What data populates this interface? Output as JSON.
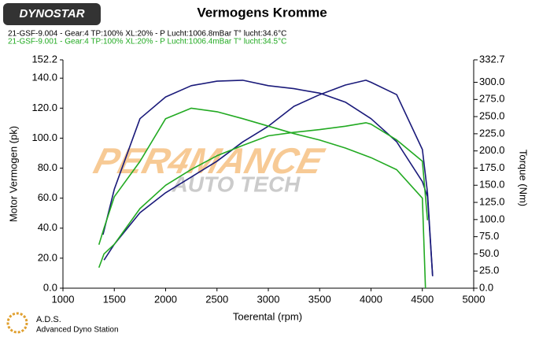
{
  "chart_data": {
    "type": "line",
    "logo": "DYNOSTAR",
    "title": "Vermogens Kromme",
    "legend": [
      {
        "text": "21-GSF-9.004 - Gear:4 TP:100% XL:20%   - P Lucht:1006.8mBar T° lucht:34.6°C",
        "color": "#000000"
      },
      {
        "text": "21-GSF-9.001 - Gear:4 TP:100% XL:20%   - P Lucht:1006.4mBar T° lucht:34.5°C",
        "color": "#22aa22"
      }
    ],
    "watermark": [
      "PER4MANCE",
      "AUTO TECH"
    ],
    "x_label": "Toerental (rpm)",
    "y_label": "Motor Vermogen (pk)",
    "y2_label": "Torque (Nm)",
    "footer": [
      "A.D.S.",
      "Advanced Dyno Station"
    ],
    "xlim": [
      1000,
      5000
    ],
    "xticks": [
      1000,
      1500,
      2000,
      2500,
      3000,
      3500,
      4000,
      4500,
      5000
    ],
    "ylim": [
      0,
      152.2
    ],
    "yticks": [
      {
        "value": 0,
        "label": "0.0"
      },
      {
        "value": 20,
        "label": "20.0"
      },
      {
        "value": 40,
        "label": "40.0"
      },
      {
        "value": 60,
        "label": "60.0"
      },
      {
        "value": 80,
        "label": "80.0"
      },
      {
        "value": 100,
        "label": "100.0"
      },
      {
        "value": 120,
        "label": "120.0"
      },
      {
        "value": 140,
        "label": "140.0"
      },
      152.2
    ],
    "y2lim": [
      0,
      332.7
    ],
    "y2ticks": [
      {
        "value": 0,
        "label": "0.0"
      },
      {
        "value": 25,
        "label": "25.0"
      },
      {
        "value": 50,
        "label": "50.0"
      },
      {
        "value": 75,
        "label": "75.0"
      },
      {
        "value": 100,
        "label": "100.0"
      },
      {
        "value": 125,
        "label": "125.0"
      },
      {
        "value": 150,
        "label": "150.0"
      },
      {
        "value": 175,
        "label": "175.0"
      },
      {
        "value": 200,
        "label": "200.0"
      },
      {
        "value": 225,
        "label": "225.0"
      },
      {
        "value": 250,
        "label": "250.0"
      },
      {
        "value": 275,
        "label": "275.0"
      },
      {
        "value": 300,
        "label": "300.0"
      },
      332.7
    ],
    "series": [
      {
        "color": "#1a1a7a",
        "x": [
          1390,
          1500,
          1750,
          2000,
          2250,
          2500,
          2750,
          3000,
          3250,
          3500,
          3750,
          4000,
          4250,
          4500,
          4550,
          4600
        ],
        "values": [
          35.7,
          66,
          113,
          127.5,
          135,
          138,
          138.6,
          135,
          133,
          130,
          124,
          113,
          97.6,
          71,
          61,
          8
        ]
      },
      {
        "color": "#1a1a7a",
        "axis": "y2",
        "x": [
          1400,
          1500,
          1750,
          2000,
          2250,
          2500,
          2750,
          3000,
          3250,
          3500,
          3750,
          3950,
          4000,
          4250,
          4500,
          4550,
          4600
        ],
        "values": [
          41,
          64,
          110,
          139,
          162,
          185,
          213,
          236,
          265,
          282,
          296,
          303,
          300,
          282,
          202,
          139,
          18
        ]
      },
      {
        "color": "#22aa22",
        "x": [
          1350,
          1400,
          1500,
          1750,
          2000,
          2250,
          2500,
          2750,
          3000,
          3250,
          3500,
          3750,
          4000,
          4250,
          4500,
          4530
        ],
        "values": [
          29,
          40,
          61,
          84.5,
          113,
          120,
          117.6,
          113,
          108,
          103,
          98.7,
          93.4,
          87,
          79,
          60,
          0
        ]
      },
      {
        "color": "#22aa22",
        "axis": "y2",
        "x": [
          1350,
          1400,
          1500,
          1750,
          2000,
          2250,
          2500,
          2750,
          3000,
          3250,
          3500,
          3750,
          3950,
          4000,
          4250,
          4500,
          4550
        ],
        "values": [
          30,
          50,
          64,
          116,
          150,
          173,
          193,
          208,
          222,
          227,
          231,
          236,
          241,
          239,
          216,
          185,
          99
        ]
      }
    ]
  }
}
